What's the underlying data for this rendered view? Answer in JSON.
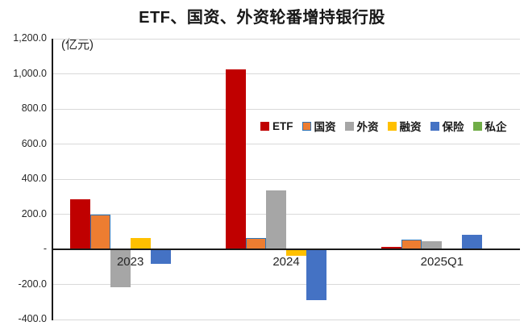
{
  "chart_data": {
    "type": "bar",
    "title": "ETF、国资、外资轮番增持银行股",
    "unit_label": "(亿元)",
    "categories": [
      "2023",
      "2024",
      "2025Q1"
    ],
    "series": [
      {
        "name": "ETF",
        "color": "#C00000",
        "border": null,
        "values": [
          285,
          1025,
          15
        ]
      },
      {
        "name": "国资",
        "color": "#ED7D31",
        "border": "#2E75B6",
        "values": [
          200,
          65,
          55
        ]
      },
      {
        "name": "外资",
        "color": "#A6A6A6",
        "border": null,
        "values": [
          -215,
          335,
          45
        ]
      },
      {
        "name": "融资",
        "color": "#FFC000",
        "border": null,
        "values": [
          65,
          -35,
          -5
        ]
      },
      {
        "name": "保险",
        "color": "#4472C4",
        "border": null,
        "values": [
          -85,
          -290,
          85
        ]
      },
      {
        "name": "私企",
        "color": "#70AD47",
        "border": null,
        "values": [
          0,
          0,
          0
        ]
      }
    ],
    "ylim": [
      -400,
      1200
    ],
    "ytick_step": 200,
    "yticks": [
      {
        "value": 1200,
        "label": "1,200.0"
      },
      {
        "value": 1000,
        "label": "1,000.0"
      },
      {
        "value": 800,
        "label": "800.0"
      },
      {
        "value": 600,
        "label": "600.0"
      },
      {
        "value": 400,
        "label": "400.0"
      },
      {
        "value": 200,
        "label": "200.0"
      },
      {
        "value": 0,
        "label": "-"
      },
      {
        "value": -200,
        "label": "-200.0"
      },
      {
        "value": -400,
        "label": "-400.0"
      }
    ],
    "grid": true,
    "legend_position": "inside-right",
    "colors": {
      "axis": "#1a1a1a",
      "gridline": "#d9d9d9",
      "background": "#ffffff",
      "text": "#262626"
    }
  }
}
